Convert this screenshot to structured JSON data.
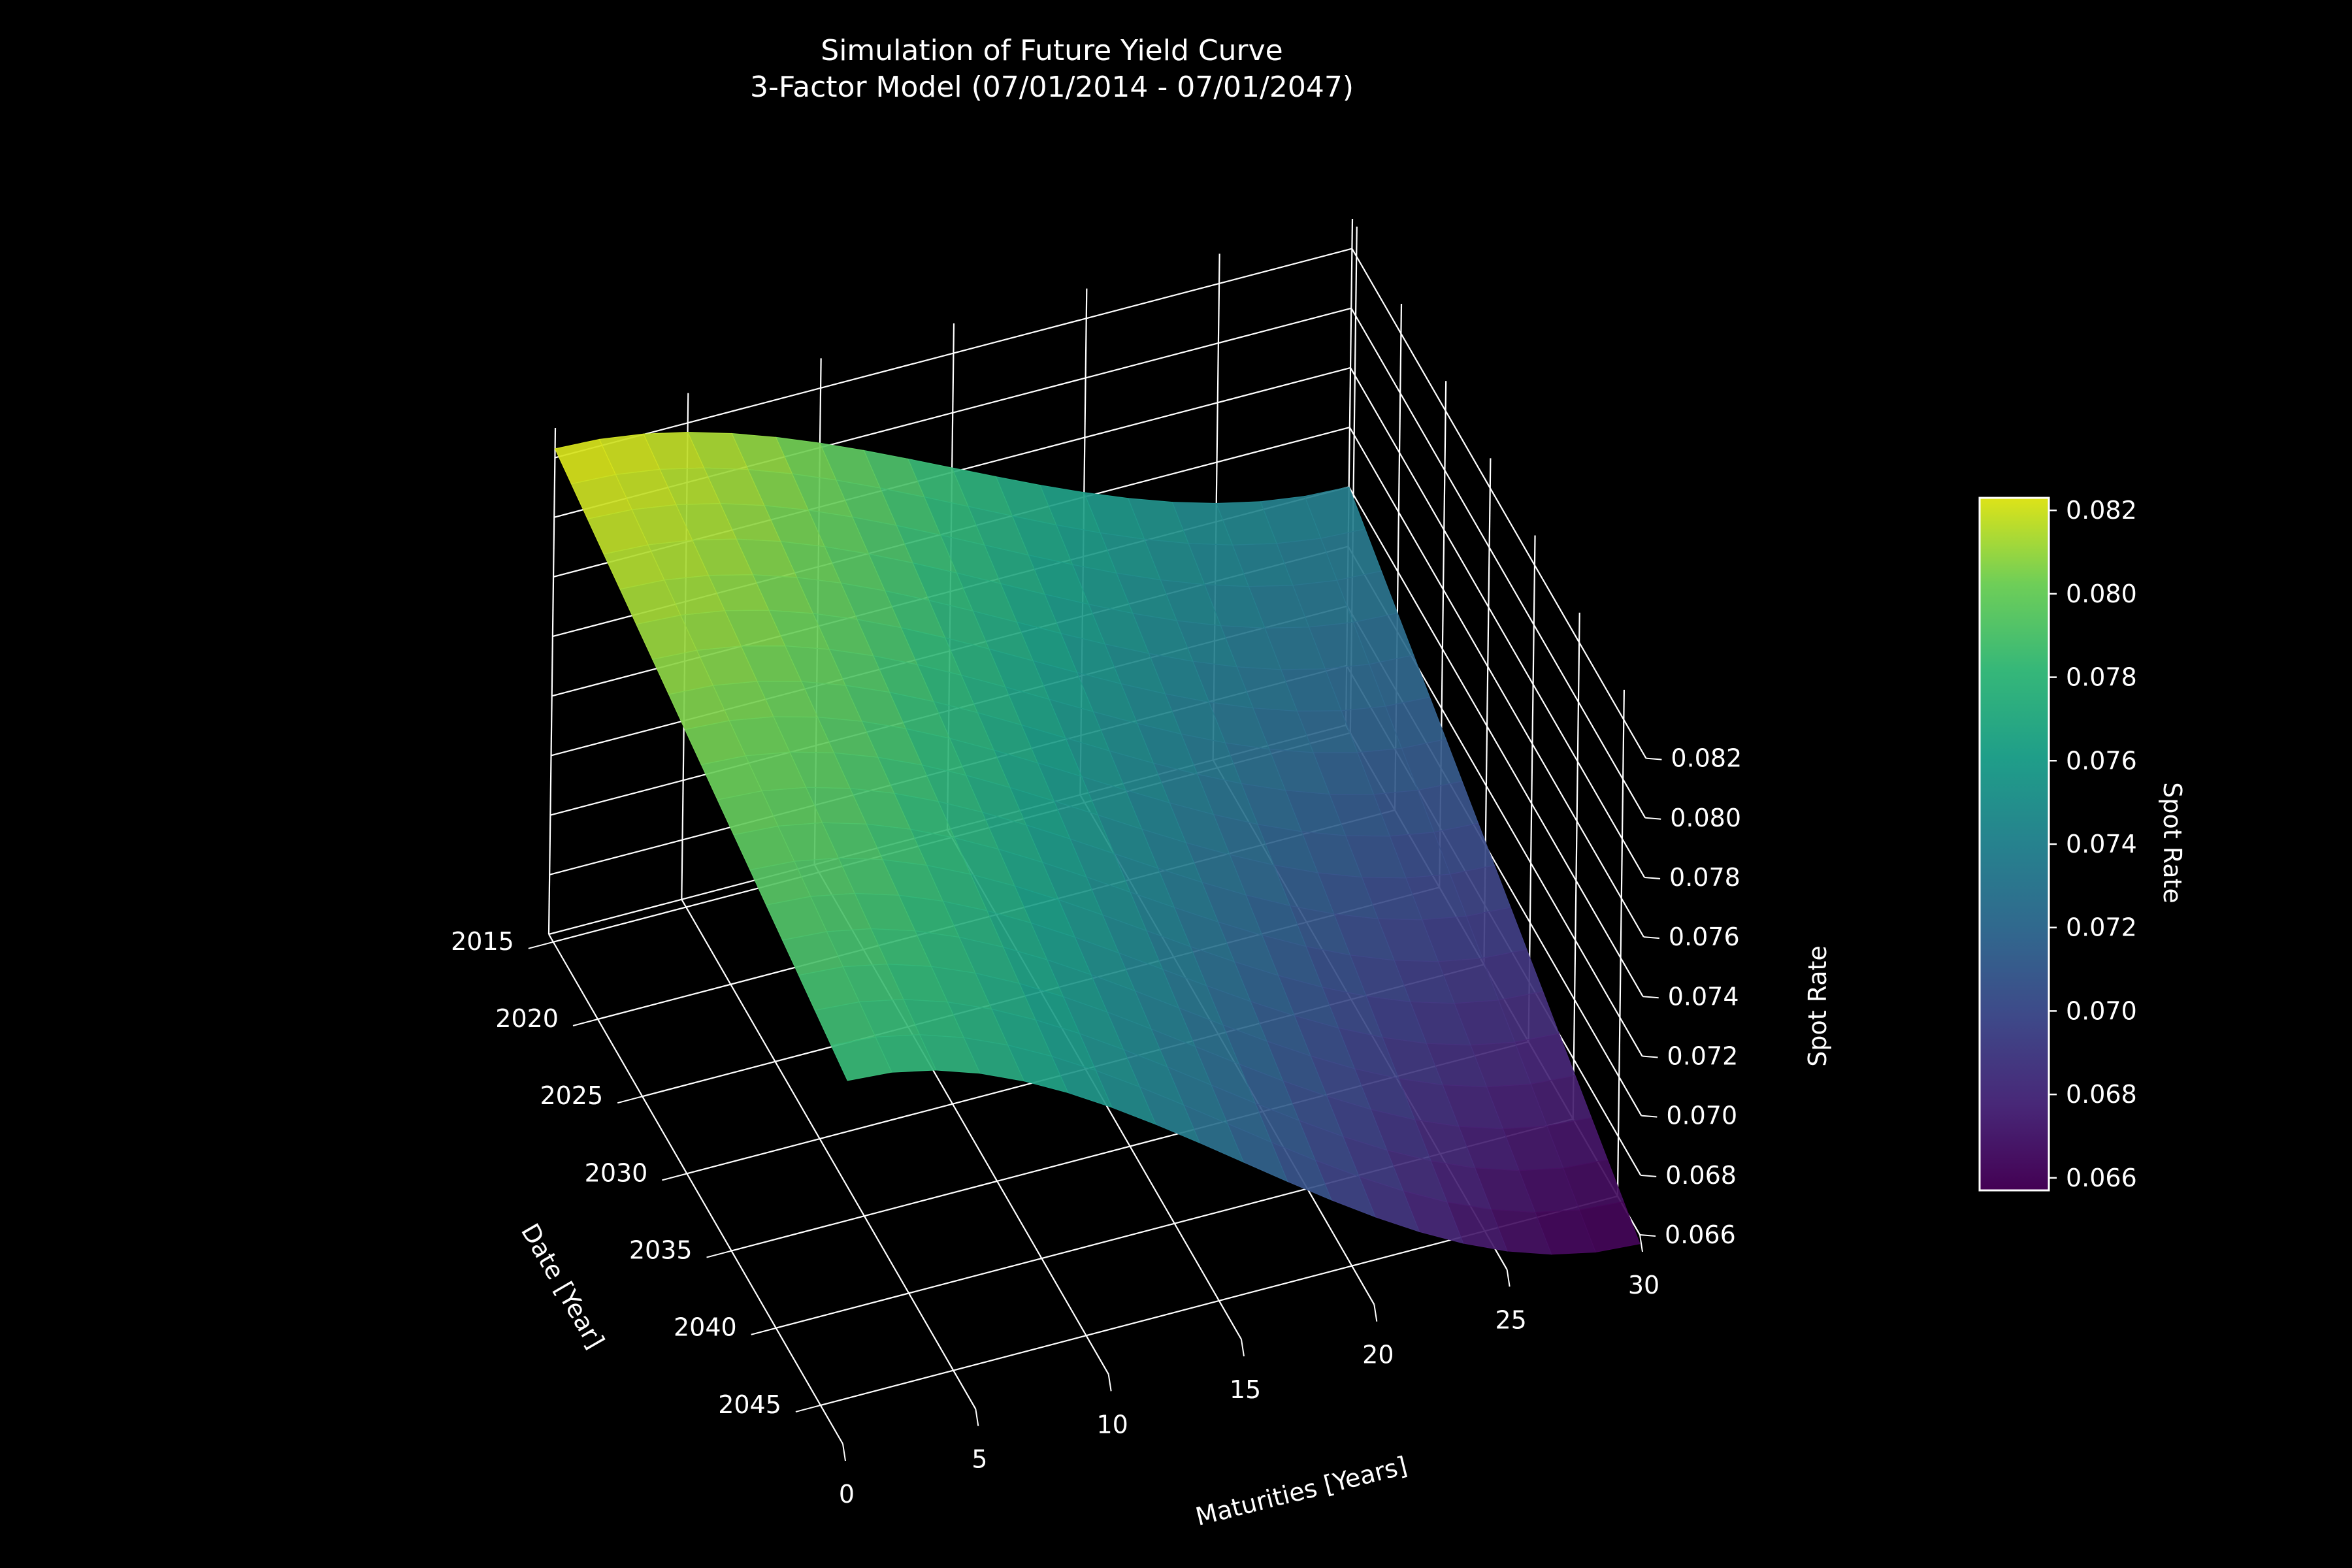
{
  "chart_data": {
    "type": "surface",
    "title": "Simulation of Future Yield Curve",
    "subtitle": "3-Factor Model (07/01/2014 - 07/01/2047)",
    "colormap": "viridis",
    "xlabel": "Date [Year]",
    "ylabel": "Maturities [Years]",
    "zlabel": "Spot Rate",
    "x_ticks": [
      "2015",
      "2020",
      "2025",
      "2030",
      "2035",
      "2040",
      "2045"
    ],
    "y_ticks": [
      "0",
      "5",
      "10",
      "15",
      "20",
      "25",
      "30"
    ],
    "z_ticks": [
      "0.066",
      "0.068",
      "0.070",
      "0.072",
      "0.074",
      "0.076",
      "0.078",
      "0.080",
      "0.082"
    ],
    "xlim": [
      2014.5,
      2047.5
    ],
    "ylim": [
      0,
      30
    ],
    "zlim": [
      0.066,
      0.083
    ],
    "grid": true,
    "colorbar": {
      "label": "Spot Rate",
      "ticks": [
        "0.066",
        "0.068",
        "0.070",
        "0.072",
        "0.074",
        "0.076",
        "0.078",
        "0.080",
        "0.082"
      ],
      "range": [
        0.0657,
        0.0823
      ]
    },
    "surface_corners": [
      {
        "date": 2014.5,
        "maturity": 0,
        "spot_rate": 0.0823
      },
      {
        "date": 2014.5,
        "maturity": 30,
        "spot_rate": 0.074
      },
      {
        "date": 2047.5,
        "maturity": 0,
        "spot_rate": 0.0782
      },
      {
        "date": 2047.5,
        "maturity": 30,
        "spot_rate": 0.0657
      }
    ]
  }
}
